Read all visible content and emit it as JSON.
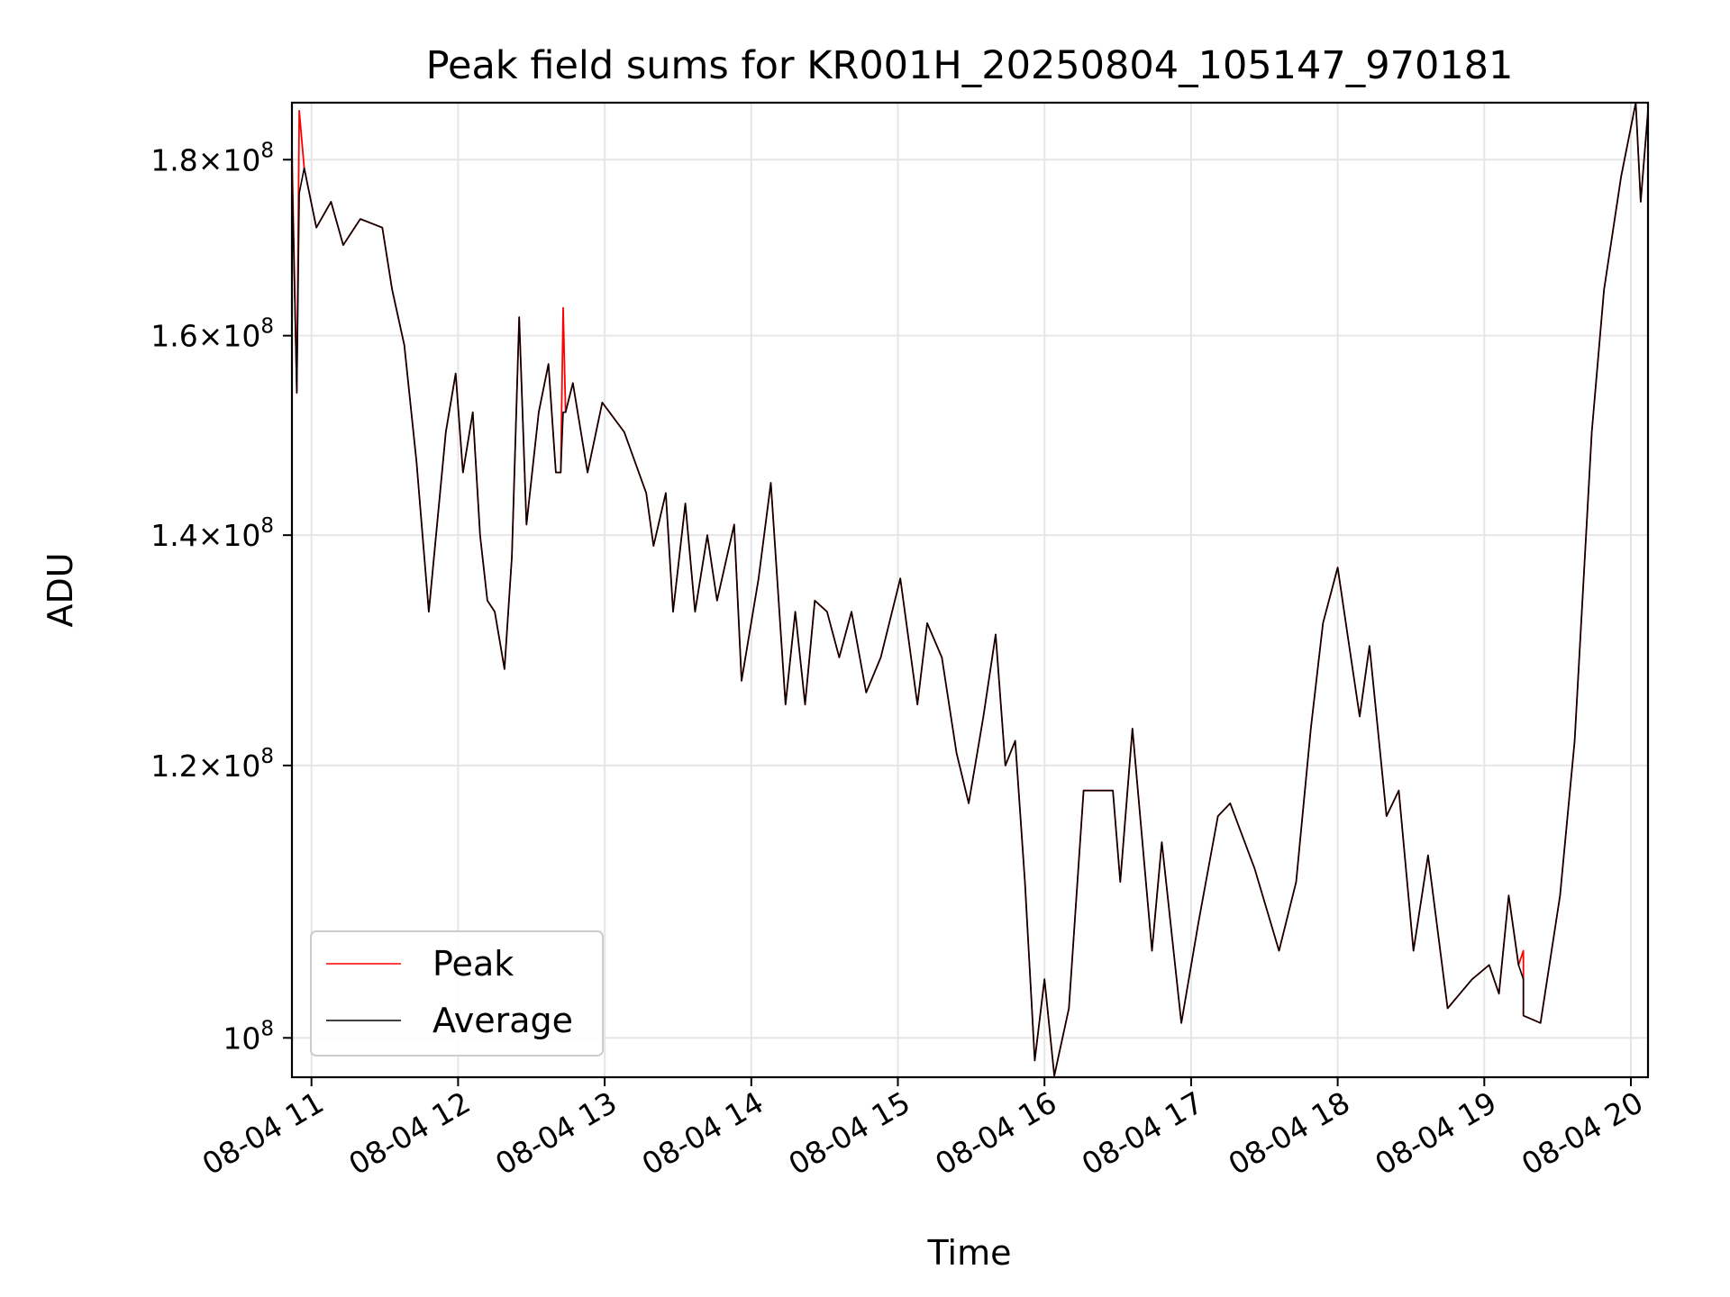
{
  "chart_data": {
    "type": "line",
    "title": "Peak field sums for KR001H_20250804_105147_970181",
    "xlabel": "Time",
    "ylabel": "ADU",
    "y_scale": "log",
    "grid": true,
    "legend_position": "lower-left",
    "xlim": [
      "2025-08-04 10:52",
      "2025-08-04 20:07"
    ],
    "ylim": [
      97400000,
      187000000
    ],
    "x_ticks": [
      {
        "t": "2025-08-04 11:00",
        "label": "08-04 11"
      },
      {
        "t": "2025-08-04 12:00",
        "label": "08-04 12"
      },
      {
        "t": "2025-08-04 13:00",
        "label": "08-04 13"
      },
      {
        "t": "2025-08-04 14:00",
        "label": "08-04 14"
      },
      {
        "t": "2025-08-04 15:00",
        "label": "08-04 15"
      },
      {
        "t": "2025-08-04 16:00",
        "label": "08-04 16"
      },
      {
        "t": "2025-08-04 17:00",
        "label": "08-04 17"
      },
      {
        "t": "2025-08-04 18:00",
        "label": "08-04 18"
      },
      {
        "t": "2025-08-04 19:00",
        "label": "08-04 19"
      },
      {
        "t": "2025-08-04 20:00",
        "label": "08-04 20"
      }
    ],
    "y_ticks": [
      {
        "value": 100000000,
        "mant": "",
        "exp": "8"
      },
      {
        "value": 120000000,
        "mant": "1.2",
        "exp": "8"
      },
      {
        "value": 140000000,
        "mant": "1.4",
        "exp": "8"
      },
      {
        "value": 160000000,
        "mant": "1.6",
        "exp": "8"
      },
      {
        "value": 180000000,
        "mant": "1.8",
        "exp": "8"
      }
    ],
    "series": [
      {
        "name": "Peak",
        "color": "#ff0000",
        "points": [
          [
            "2025-08-04 10:52",
            181000000
          ],
          [
            "2025-08-04 10:54",
            154000000
          ],
          [
            "2025-08-04 10:55",
            186000000
          ],
          [
            "2025-08-04 10:57",
            179000000
          ],
          [
            "2025-08-04 11:02",
            172000000
          ],
          [
            "2025-08-04 11:08",
            175000000
          ],
          [
            "2025-08-04 11:13",
            170000000
          ],
          [
            "2025-08-04 11:20",
            173000000
          ],
          [
            "2025-08-04 11:29",
            172000000
          ],
          [
            "2025-08-04 11:33",
            165000000
          ],
          [
            "2025-08-04 11:38",
            159000000
          ],
          [
            "2025-08-04 11:43",
            147000000
          ],
          [
            "2025-08-04 11:48",
            133000000
          ],
          [
            "2025-08-04 11:55",
            150000000
          ],
          [
            "2025-08-04 11:59",
            156000000
          ],
          [
            "2025-08-04 12:02",
            146000000
          ],
          [
            "2025-08-04 12:06",
            152000000
          ],
          [
            "2025-08-04 12:09",
            140000000
          ],
          [
            "2025-08-04 12:12",
            134000000
          ],
          [
            "2025-08-04 12:15",
            133000000
          ],
          [
            "2025-08-04 12:19",
            128000000
          ],
          [
            "2025-08-04 12:22",
            138000000
          ],
          [
            "2025-08-04 12:25",
            162000000
          ],
          [
            "2025-08-04 12:28",
            141000000
          ],
          [
            "2025-08-04 12:33",
            152000000
          ],
          [
            "2025-08-04 12:37",
            157000000
          ],
          [
            "2025-08-04 12:40",
            146000000
          ],
          [
            "2025-08-04 12:42",
            146000000
          ],
          [
            "2025-08-04 12:43",
            163000000
          ],
          [
            "2025-08-04 12:44",
            152000000
          ],
          [
            "2025-08-04 12:47",
            155000000
          ],
          [
            "2025-08-04 12:53",
            146000000
          ],
          [
            "2025-08-04 12:59",
            153000000
          ],
          [
            "2025-08-04 13:08",
            150000000
          ],
          [
            "2025-08-04 13:17",
            144000000
          ],
          [
            "2025-08-04 13:20",
            139000000
          ],
          [
            "2025-08-04 13:25",
            144000000
          ],
          [
            "2025-08-04 13:28",
            133000000
          ],
          [
            "2025-08-04 13:33",
            143000000
          ],
          [
            "2025-08-04 13:37",
            133000000
          ],
          [
            "2025-08-04 13:42",
            140000000
          ],
          [
            "2025-08-04 13:46",
            134000000
          ],
          [
            "2025-08-04 13:53",
            141000000
          ],
          [
            "2025-08-04 13:56",
            127000000
          ],
          [
            "2025-08-04 14:03",
            136000000
          ],
          [
            "2025-08-04 14:08",
            145000000
          ],
          [
            "2025-08-04 14:14",
            125000000
          ],
          [
            "2025-08-04 14:18",
            133000000
          ],
          [
            "2025-08-04 14:22",
            125000000
          ],
          [
            "2025-08-04 14:26",
            134000000
          ],
          [
            "2025-08-04 14:31",
            133000000
          ],
          [
            "2025-08-04 14:36",
            129000000
          ],
          [
            "2025-08-04 14:41",
            133000000
          ],
          [
            "2025-08-04 14:47",
            126000000
          ],
          [
            "2025-08-04 14:53",
            129000000
          ],
          [
            "2025-08-04 15:01",
            136000000
          ],
          [
            "2025-08-04 15:08",
            125000000
          ],
          [
            "2025-08-04 15:12",
            132000000
          ],
          [
            "2025-08-04 15:18",
            129000000
          ],
          [
            "2025-08-04 15:24",
            121000000
          ],
          [
            "2025-08-04 15:29",
            117000000
          ],
          [
            "2025-08-04 15:35",
            124000000
          ],
          [
            "2025-08-04 15:40",
            131000000
          ],
          [
            "2025-08-04 15:44",
            120000000
          ],
          [
            "2025-08-04 15:48",
            122000000
          ],
          [
            "2025-08-04 15:52",
            111000000
          ],
          [
            "2025-08-04 15:56",
            98500000
          ],
          [
            "2025-08-04 16:00",
            104000000
          ],
          [
            "2025-08-04 16:04",
            97500000
          ],
          [
            "2025-08-04 16:10",
            102000000
          ],
          [
            "2025-08-04 16:16",
            118000000
          ],
          [
            "2025-08-04 16:22",
            118000000
          ],
          [
            "2025-08-04 16:28",
            118000000
          ],
          [
            "2025-08-04 16:31",
            111000000
          ],
          [
            "2025-08-04 16:36",
            123000000
          ],
          [
            "2025-08-04 16:44",
            106000000
          ],
          [
            "2025-08-04 16:48",
            114000000
          ],
          [
            "2025-08-04 16:56",
            101000000
          ],
          [
            "2025-08-04 17:03",
            108000000
          ],
          [
            "2025-08-04 17:11",
            116000000
          ],
          [
            "2025-08-04 17:16",
            117000000
          ],
          [
            "2025-08-04 17:26",
            112000000
          ],
          [
            "2025-08-04 17:36",
            106000000
          ],
          [
            "2025-08-04 17:43",
            111000000
          ],
          [
            "2025-08-04 17:49",
            123000000
          ],
          [
            "2025-08-04 17:54",
            132000000
          ],
          [
            "2025-08-04 18:00",
            137000000
          ],
          [
            "2025-08-04 18:04",
            131000000
          ],
          [
            "2025-08-04 18:09",
            124000000
          ],
          [
            "2025-08-04 18:13",
            130000000
          ],
          [
            "2025-08-04 18:20",
            116000000
          ],
          [
            "2025-08-04 18:25",
            118000000
          ],
          [
            "2025-08-04 18:31",
            106000000
          ],
          [
            "2025-08-04 18:37",
            113000000
          ],
          [
            "2025-08-04 18:45",
            102000000
          ],
          [
            "2025-08-04 18:50",
            103000000
          ],
          [
            "2025-08-04 18:55",
            104000000
          ],
          [
            "2025-08-04 19:02",
            105000000
          ],
          [
            "2025-08-04 19:06",
            103000000
          ],
          [
            "2025-08-04 19:10",
            110000000
          ],
          [
            "2025-08-04 19:14",
            105000000
          ],
          [
            "2025-08-04 19:16",
            106000000
          ],
          [
            "2025-08-04 19:16",
            101500000
          ],
          [
            "2025-08-04 19:23",
            101000000
          ],
          [
            "2025-08-04 19:31",
            110000000
          ],
          [
            "2025-08-04 19:37",
            122000000
          ],
          [
            "2025-08-04 19:44",
            150000000
          ],
          [
            "2025-08-04 19:49",
            165000000
          ],
          [
            "2025-08-04 19:56",
            178000000
          ],
          [
            "2025-08-04 20:02",
            187000000
          ],
          [
            "2025-08-04 20:04",
            175000000
          ],
          [
            "2025-08-04 20:07",
            186000000
          ]
        ]
      },
      {
        "name": "Average",
        "color": "#000000",
        "points": [
          [
            "2025-08-04 10:52",
            179000000
          ],
          [
            "2025-08-04 10:54",
            154000000
          ],
          [
            "2025-08-04 10:55",
            176000000
          ],
          [
            "2025-08-04 10:57",
            179000000
          ],
          [
            "2025-08-04 11:02",
            172000000
          ],
          [
            "2025-08-04 11:08",
            175000000
          ],
          [
            "2025-08-04 11:13",
            170000000
          ],
          [
            "2025-08-04 11:20",
            173000000
          ],
          [
            "2025-08-04 11:29",
            172000000
          ],
          [
            "2025-08-04 11:33",
            165000000
          ],
          [
            "2025-08-04 11:38",
            159000000
          ],
          [
            "2025-08-04 11:43",
            147000000
          ],
          [
            "2025-08-04 11:48",
            133000000
          ],
          [
            "2025-08-04 11:55",
            150000000
          ],
          [
            "2025-08-04 11:59",
            156000000
          ],
          [
            "2025-08-04 12:02",
            146000000
          ],
          [
            "2025-08-04 12:06",
            152000000
          ],
          [
            "2025-08-04 12:09",
            140000000
          ],
          [
            "2025-08-04 12:12",
            134000000
          ],
          [
            "2025-08-04 12:15",
            133000000
          ],
          [
            "2025-08-04 12:19",
            128000000
          ],
          [
            "2025-08-04 12:22",
            138000000
          ],
          [
            "2025-08-04 12:25",
            162000000
          ],
          [
            "2025-08-04 12:28",
            141000000
          ],
          [
            "2025-08-04 12:33",
            152000000
          ],
          [
            "2025-08-04 12:37",
            157000000
          ],
          [
            "2025-08-04 12:40",
            146000000
          ],
          [
            "2025-08-04 12:42",
            146000000
          ],
          [
            "2025-08-04 12:43",
            152000000
          ],
          [
            "2025-08-04 12:44",
            152000000
          ],
          [
            "2025-08-04 12:47",
            155000000
          ],
          [
            "2025-08-04 12:53",
            146000000
          ],
          [
            "2025-08-04 12:59",
            153000000
          ],
          [
            "2025-08-04 13:08",
            150000000
          ],
          [
            "2025-08-04 13:17",
            144000000
          ],
          [
            "2025-08-04 13:20",
            139000000
          ],
          [
            "2025-08-04 13:25",
            144000000
          ],
          [
            "2025-08-04 13:28",
            133000000
          ],
          [
            "2025-08-04 13:33",
            143000000
          ],
          [
            "2025-08-04 13:37",
            133000000
          ],
          [
            "2025-08-04 13:42",
            140000000
          ],
          [
            "2025-08-04 13:46",
            134000000
          ],
          [
            "2025-08-04 13:53",
            141000000
          ],
          [
            "2025-08-04 13:56",
            127000000
          ],
          [
            "2025-08-04 14:03",
            136000000
          ],
          [
            "2025-08-04 14:08",
            145000000
          ],
          [
            "2025-08-04 14:14",
            125000000
          ],
          [
            "2025-08-04 14:18",
            133000000
          ],
          [
            "2025-08-04 14:22",
            125000000
          ],
          [
            "2025-08-04 14:26",
            134000000
          ],
          [
            "2025-08-04 14:31",
            133000000
          ],
          [
            "2025-08-04 14:36",
            129000000
          ],
          [
            "2025-08-04 14:41",
            133000000
          ],
          [
            "2025-08-04 14:47",
            126000000
          ],
          [
            "2025-08-04 14:53",
            129000000
          ],
          [
            "2025-08-04 15:01",
            136000000
          ],
          [
            "2025-08-04 15:08",
            125000000
          ],
          [
            "2025-08-04 15:12",
            132000000
          ],
          [
            "2025-08-04 15:18",
            129000000
          ],
          [
            "2025-08-04 15:24",
            121000000
          ],
          [
            "2025-08-04 15:29",
            117000000
          ],
          [
            "2025-08-04 15:35",
            124000000
          ],
          [
            "2025-08-04 15:40",
            131000000
          ],
          [
            "2025-08-04 15:44",
            120000000
          ],
          [
            "2025-08-04 15:48",
            122000000
          ],
          [
            "2025-08-04 15:52",
            111000000
          ],
          [
            "2025-08-04 15:56",
            98500000
          ],
          [
            "2025-08-04 16:00",
            104000000
          ],
          [
            "2025-08-04 16:04",
            97500000
          ],
          [
            "2025-08-04 16:10",
            102000000
          ],
          [
            "2025-08-04 16:16",
            118000000
          ],
          [
            "2025-08-04 16:22",
            118000000
          ],
          [
            "2025-08-04 16:28",
            118000000
          ],
          [
            "2025-08-04 16:31",
            111000000
          ],
          [
            "2025-08-04 16:36",
            123000000
          ],
          [
            "2025-08-04 16:44",
            106000000
          ],
          [
            "2025-08-04 16:48",
            114000000
          ],
          [
            "2025-08-04 16:56",
            101000000
          ],
          [
            "2025-08-04 17:03",
            108000000
          ],
          [
            "2025-08-04 17:11",
            116000000
          ],
          [
            "2025-08-04 17:16",
            117000000
          ],
          [
            "2025-08-04 17:26",
            112000000
          ],
          [
            "2025-08-04 17:36",
            106000000
          ],
          [
            "2025-08-04 17:43",
            111000000
          ],
          [
            "2025-08-04 17:49",
            123000000
          ],
          [
            "2025-08-04 17:54",
            132000000
          ],
          [
            "2025-08-04 18:00",
            137000000
          ],
          [
            "2025-08-04 18:04",
            131000000
          ],
          [
            "2025-08-04 18:09",
            124000000
          ],
          [
            "2025-08-04 18:13",
            130000000
          ],
          [
            "2025-08-04 18:20",
            116000000
          ],
          [
            "2025-08-04 18:25",
            118000000
          ],
          [
            "2025-08-04 18:31",
            106000000
          ],
          [
            "2025-08-04 18:37",
            113000000
          ],
          [
            "2025-08-04 18:45",
            102000000
          ],
          [
            "2025-08-04 18:50",
            103000000
          ],
          [
            "2025-08-04 18:55",
            104000000
          ],
          [
            "2025-08-04 19:02",
            105000000
          ],
          [
            "2025-08-04 19:06",
            103000000
          ],
          [
            "2025-08-04 19:10",
            110000000
          ],
          [
            "2025-08-04 19:14",
            105000000
          ],
          [
            "2025-08-04 19:16",
            104000000
          ],
          [
            "2025-08-04 19:16",
            101500000
          ],
          [
            "2025-08-04 19:23",
            101000000
          ],
          [
            "2025-08-04 19:31",
            110000000
          ],
          [
            "2025-08-04 19:37",
            122000000
          ],
          [
            "2025-08-04 19:44",
            150000000
          ],
          [
            "2025-08-04 19:49",
            165000000
          ],
          [
            "2025-08-04 19:56",
            178000000
          ],
          [
            "2025-08-04 20:02",
            187000000
          ],
          [
            "2025-08-04 20:04",
            175000000
          ],
          [
            "2025-08-04 20:07",
            186000000
          ]
        ]
      }
    ]
  }
}
